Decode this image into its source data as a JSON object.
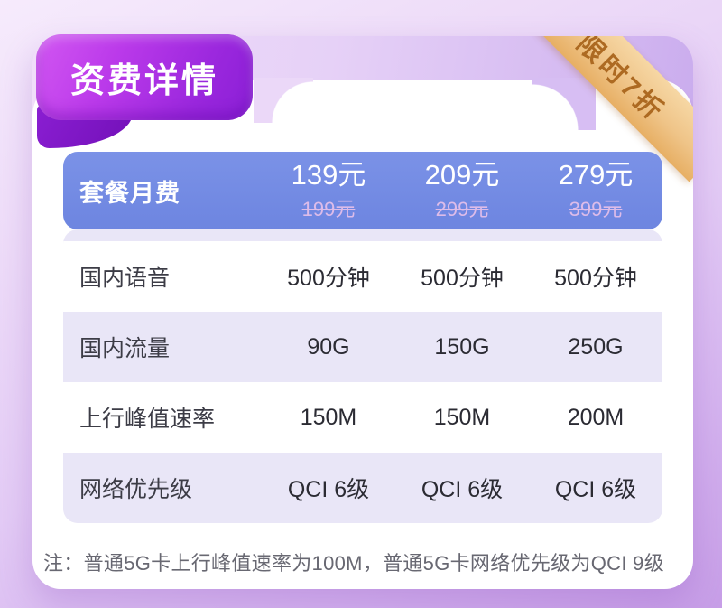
{
  "badge": {
    "title": "资费详情"
  },
  "ribbon": {
    "label": "限时7折"
  },
  "table": {
    "header": {
      "label": "套餐月费",
      "plans": [
        {
          "price": "139元",
          "original": "199元"
        },
        {
          "price": "209元",
          "original": "299元"
        },
        {
          "price": "279元",
          "original": "399元"
        }
      ]
    },
    "rows": [
      {
        "label": "国内语音",
        "values": [
          "500分钟",
          "500分钟",
          "500分钟"
        ]
      },
      {
        "label": "国内流量",
        "values": [
          "90G",
          "150G",
          "250G"
        ]
      },
      {
        "label": "上行峰值速率",
        "values": [
          "150M",
          "150M",
          "200M"
        ]
      },
      {
        "label": "网络优先级",
        "values": [
          "QCI 6级",
          "QCI 6级",
          "QCI 6级"
        ]
      }
    ]
  },
  "note": "注：普通5G卡上行峰值速率为100M，普通5G卡网络优先级为QCI 9级",
  "colors": {
    "badge_gradient_start": "#d257f2",
    "badge_gradient_end": "#8b1fd6",
    "badge_fold": "#7310b8",
    "ribbon_gold": "#eec184",
    "ribbon_text": "#ad6a22",
    "header_blue": "#7289e2",
    "stripe_lavender": "#e9e6f7",
    "card_lavender": "#d9c0f2",
    "price_strike": "#ddbce9",
    "background_purple": "#d5b4ef"
  }
}
